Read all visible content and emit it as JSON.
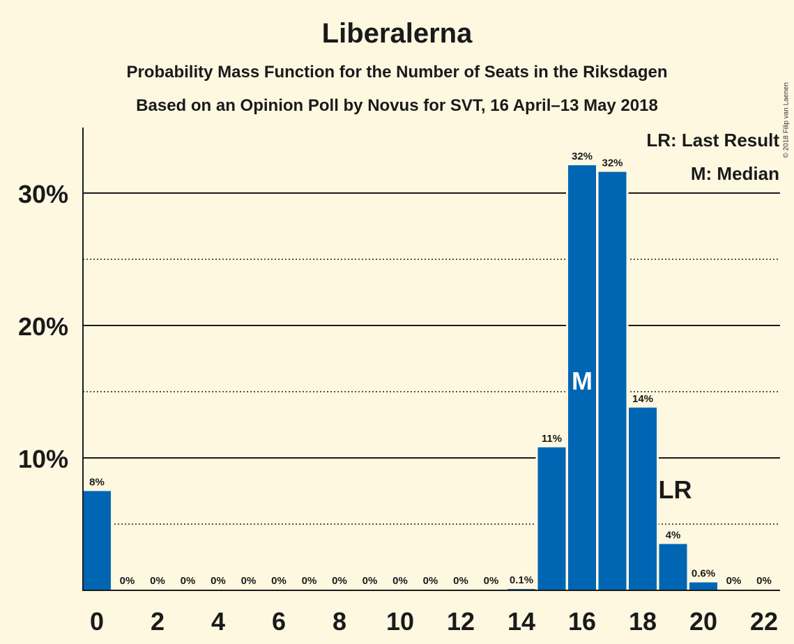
{
  "chart_data": {
    "type": "bar",
    "title": "Liberalerna",
    "subtitle_lines": [
      "Probability Mass Function for the Number of Seats in the Riksdagen",
      "Based on an Opinion Poll by Novus for SVT, 16 April–13 May 2018"
    ],
    "copyright": "© 2018 Filip van Laenen",
    "legend": [
      "LR: Last Result",
      "M: Median"
    ],
    "legend_position": "top-right",
    "categories": [
      0,
      1,
      2,
      3,
      4,
      5,
      6,
      7,
      8,
      9,
      10,
      11,
      12,
      13,
      14,
      15,
      16,
      17,
      18,
      19,
      20,
      21,
      22
    ],
    "values": [
      7.5,
      0,
      0,
      0,
      0,
      0,
      0,
      0,
      0,
      0,
      0,
      0,
      0,
      0,
      0.1,
      10.8,
      32.1,
      31.6,
      13.8,
      3.5,
      0.6,
      0,
      0
    ],
    "data_labels": [
      "8%",
      "0%",
      "0%",
      "0%",
      "0%",
      "0%",
      "0%",
      "0%",
      "0%",
      "0%",
      "0%",
      "0%",
      "0%",
      "0%",
      "0.1%",
      "11%",
      "32%",
      "32%",
      "14%",
      "4%",
      "0.6%",
      "0%",
      "0%"
    ],
    "x_tick_labels": [
      "0",
      "2",
      "4",
      "6",
      "8",
      "10",
      "12",
      "14",
      "16",
      "18",
      "20",
      "22"
    ],
    "y_tick_labels": [
      {
        "value": 10,
        "label": "10%"
      },
      {
        "value": 20,
        "label": "20%"
      },
      {
        "value": 30,
        "label": "30%"
      }
    ],
    "dotted_gridlines": [
      5,
      15,
      25
    ],
    "ylim": [
      0,
      35
    ],
    "median_seat": 16,
    "median_marker": "M",
    "last_result_seat": 19,
    "last_result_marker": "LR",
    "bar_color": "#0066b3",
    "background_color": "#fff8e1"
  }
}
